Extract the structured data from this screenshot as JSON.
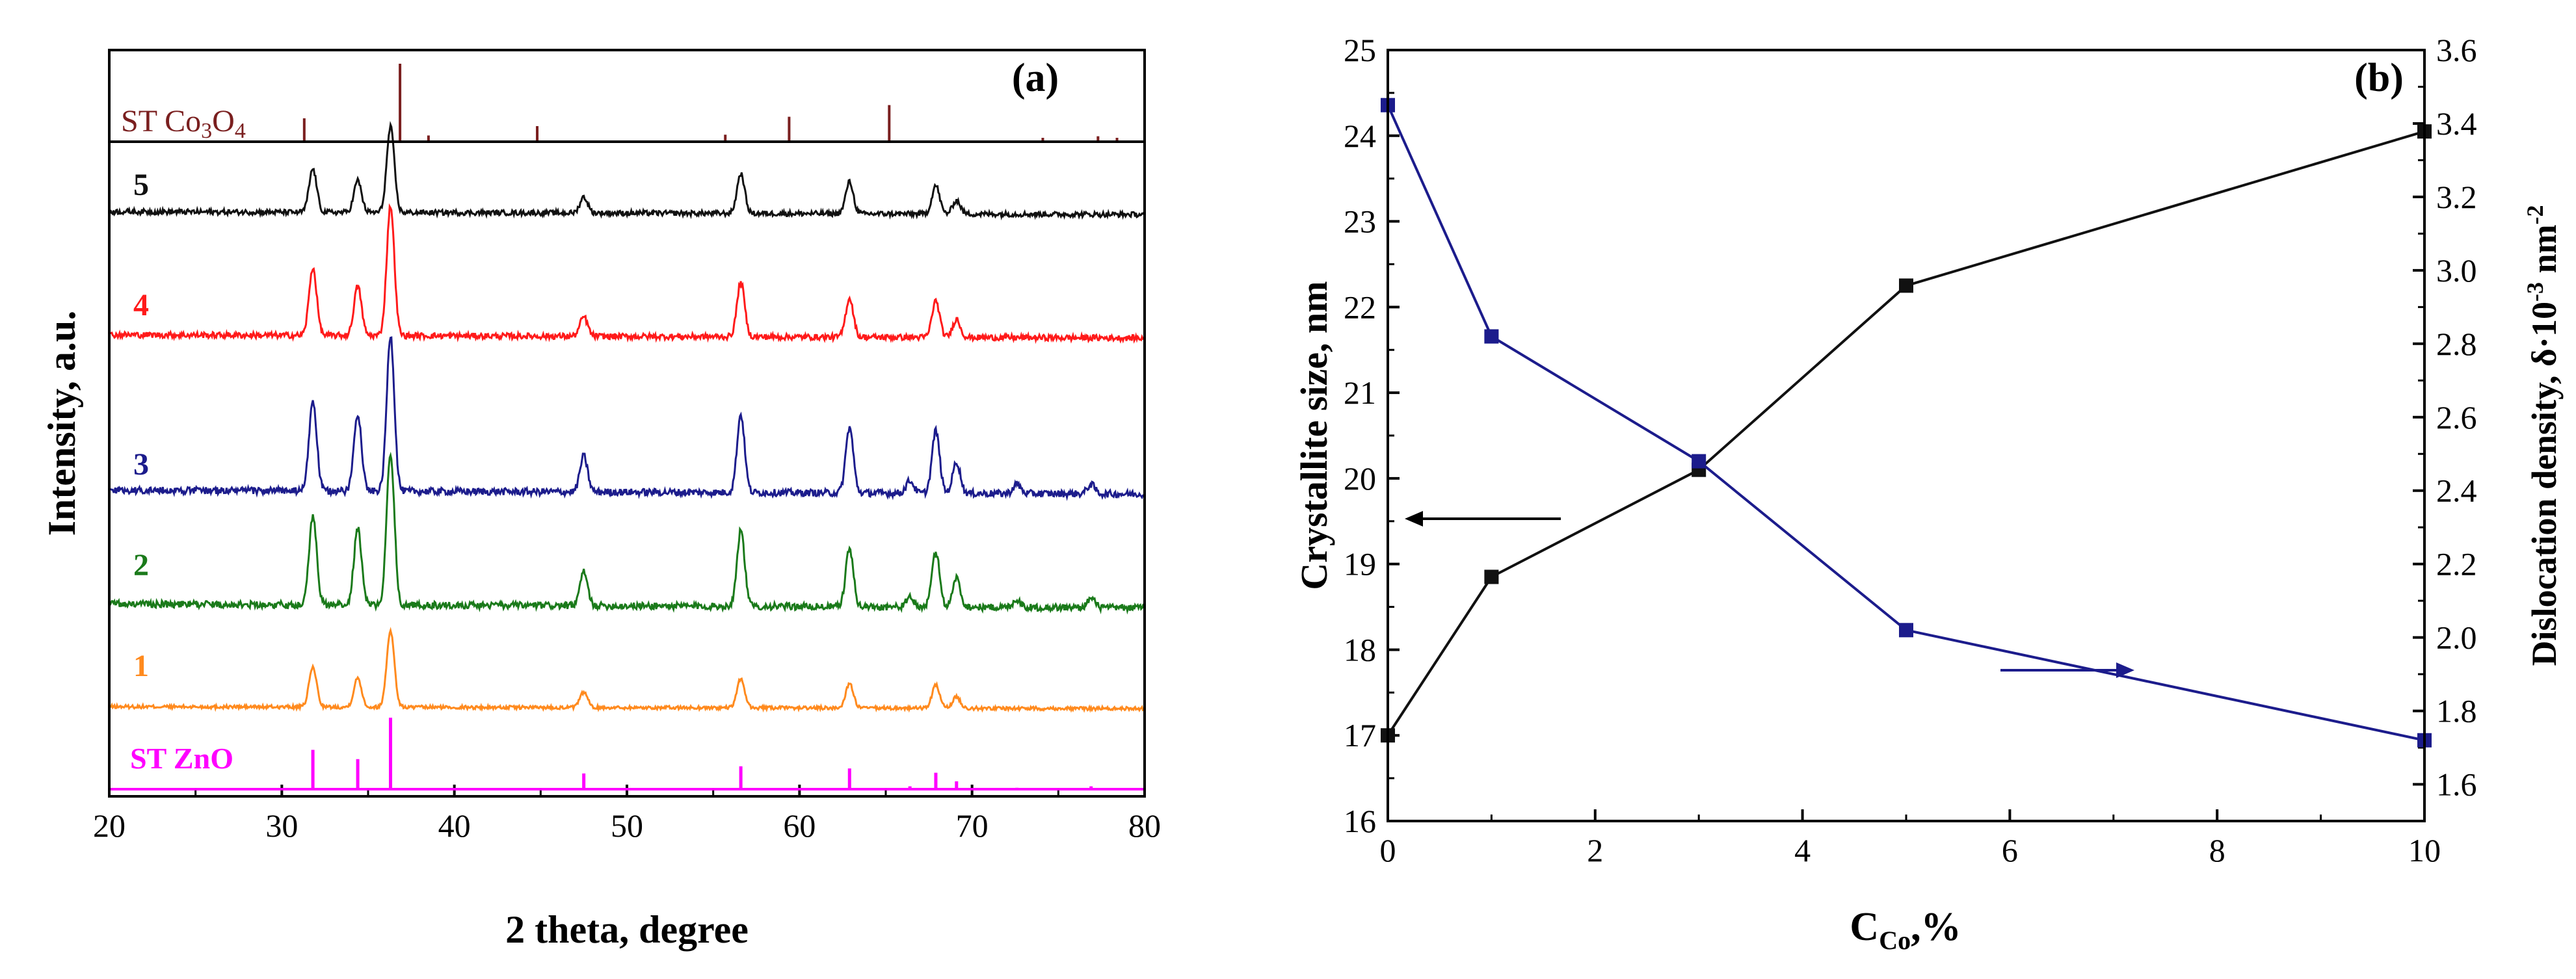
{
  "chart_data": [
    {
      "panel": "(a)",
      "type": "line",
      "title": "",
      "xlabel": "2 theta, degree",
      "ylabel": "Intensity, a.u.",
      "xlim": [
        20,
        80
      ],
      "xticks": [
        20,
        30,
        40,
        50,
        60,
        70,
        80
      ],
      "ref_co3o4": {
        "label_main": "ST Co",
        "label_sub1": "3",
        "label_mid": "O",
        "label_sub2": "4",
        "color": "#7a1f1f",
        "peaks": [
          [
            31.3,
            0.3
          ],
          [
            36.85,
            1.0
          ],
          [
            38.5,
            0.08
          ],
          [
            44.8,
            0.2
          ],
          [
            55.7,
            0.09
          ],
          [
            59.4,
            0.32
          ],
          [
            65.2,
            0.47
          ],
          [
            74.1,
            0.05
          ],
          [
            77.3,
            0.07
          ],
          [
            78.4,
            0.05
          ]
        ]
      },
      "ref_zno": {
        "label": "ST ZnO",
        "color": "#ff00ff",
        "peaks": [
          [
            31.8,
            0.55
          ],
          [
            34.4,
            0.42
          ],
          [
            36.3,
            1.0
          ],
          [
            47.5,
            0.22
          ],
          [
            56.6,
            0.32
          ],
          [
            62.9,
            0.29
          ],
          [
            66.4,
            0.04
          ],
          [
            67.9,
            0.23
          ],
          [
            69.1,
            0.11
          ],
          [
            72.6,
            0.02
          ],
          [
            76.9,
            0.04
          ]
        ]
      },
      "series": [
        {
          "name": "1",
          "color": "#ff8a1e",
          "peaks": [
            [
              31.8,
              0.52
            ],
            [
              34.4,
              0.38
            ],
            [
              36.3,
              1.0
            ],
            [
              47.5,
              0.2
            ],
            [
              56.6,
              0.38
            ],
            [
              62.9,
              0.32
            ],
            [
              67.9,
              0.3
            ],
            [
              69.1,
              0.15
            ]
          ]
        },
        {
          "name": "2",
          "color": "#1a7a1a",
          "peaks": [
            [
              31.8,
              0.58
            ],
            [
              34.4,
              0.5
            ],
            [
              36.3,
              1.0
            ],
            [
              47.5,
              0.22
            ],
            [
              56.6,
              0.5
            ],
            [
              62.9,
              0.38
            ],
            [
              66.4,
              0.06
            ],
            [
              67.9,
              0.36
            ],
            [
              69.1,
              0.19
            ],
            [
              72.6,
              0.05
            ],
            [
              76.9,
              0.06
            ]
          ]
        },
        {
          "name": "3",
          "color": "#1c1c8c",
          "peaks": [
            [
              31.8,
              0.58
            ],
            [
              34.4,
              0.5
            ],
            [
              36.3,
              1.0
            ],
            [
              47.5,
              0.23
            ],
            [
              56.6,
              0.5
            ],
            [
              62.9,
              0.42
            ],
            [
              66.4,
              0.08
            ],
            [
              67.9,
              0.4
            ],
            [
              69.1,
              0.2
            ],
            [
              72.6,
              0.06
            ],
            [
              76.9,
              0.06
            ]
          ]
        },
        {
          "name": "4",
          "color": "#ff1a1a",
          "peaks": [
            [
              31.8,
              0.52
            ],
            [
              34.4,
              0.38
            ],
            [
              36.3,
              1.0
            ],
            [
              47.5,
              0.15
            ],
            [
              56.6,
              0.42
            ],
            [
              62.9,
              0.3
            ],
            [
              67.9,
              0.28
            ],
            [
              69.1,
              0.14
            ]
          ]
        },
        {
          "name": "5",
          "color": "#111111",
          "peaks": [
            [
              31.8,
              0.38
            ],
            [
              34.4,
              0.28
            ],
            [
              36.3,
              0.75
            ],
            [
              47.5,
              0.14
            ],
            [
              56.6,
              0.35
            ],
            [
              62.9,
              0.28
            ],
            [
              67.9,
              0.25
            ],
            [
              69.1,
              0.12
            ]
          ]
        }
      ]
    },
    {
      "panel": "(b)",
      "type": "line",
      "xlabel_main": "C",
      "xlabel_sub": "Co",
      "xlabel_tail": ",%",
      "ylabel_left": "Crystallite size, nm",
      "ylabel_right_main": "Dislocation density, δ·10",
      "ylabel_right_sup1": "-3",
      "ylabel_right_mid": " nm",
      "ylabel_right_sup2": "-2",
      "xlim": [
        0,
        10
      ],
      "xticks": [
        0,
        2,
        4,
        6,
        8,
        10
      ],
      "ylim_left": [
        16,
        25
      ],
      "yticks_left": [
        16,
        17,
        18,
        19,
        20,
        21,
        22,
        23,
        24,
        25
      ],
      "ylim_right": [
        1.5,
        3.6
      ],
      "yticks_right": [
        "1.6",
        "1.8",
        "2.0",
        "2.2",
        "2.4",
        "2.6",
        "2.8",
        "3.0",
        "3.2",
        "3.4",
        "3.6"
      ],
      "series": [
        {
          "name": "Crystallite size",
          "axis": "left",
          "color": "#111111",
          "x": [
            0,
            1,
            3,
            5,
            10
          ],
          "y": [
            17.0,
            18.85,
            20.1,
            22.25,
            24.05
          ]
        },
        {
          "name": "Dislocation density",
          "axis": "right",
          "color": "#1c1c8c",
          "x": [
            0,
            1,
            3,
            5,
            10
          ],
          "y": [
            3.45,
            2.82,
            2.48,
            2.02,
            1.72
          ]
        }
      ]
    }
  ]
}
